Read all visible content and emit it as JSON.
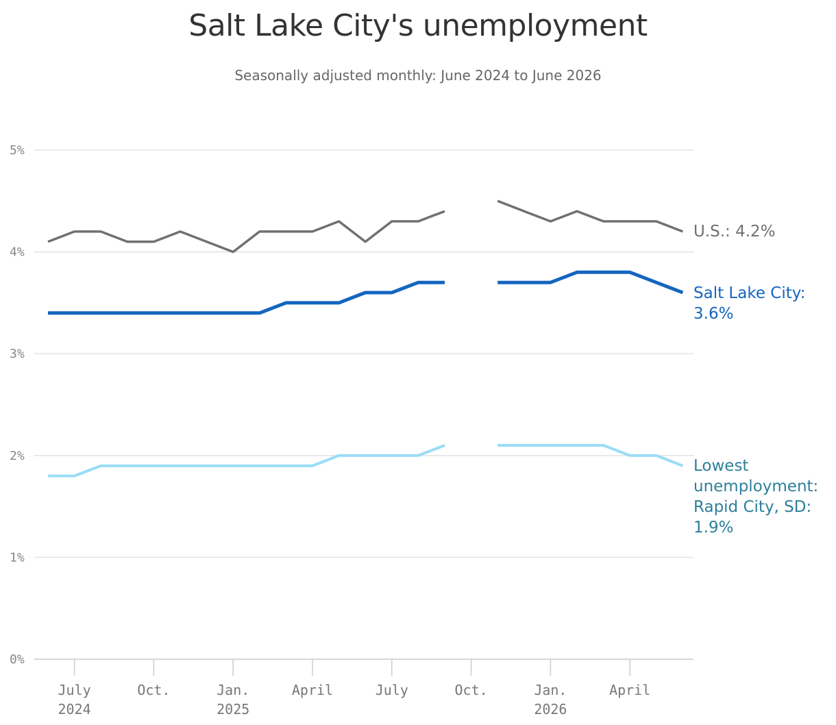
{
  "chart_data": {
    "type": "line",
    "title": "Salt Lake City's unemployment",
    "subtitle": "Seasonally adjusted monthly: June 2024 to June 2026",
    "xlabel": "",
    "ylabel": "",
    "x_months": [
      "2024-06",
      "2024-07",
      "2024-08",
      "2024-09",
      "2024-10",
      "2024-11",
      "2024-12",
      "2025-01",
      "2025-02",
      "2025-03",
      "2025-04",
      "2025-05",
      "2025-06",
      "2025-07",
      "2025-08",
      "2025-09",
      "2025-10",
      "2025-11",
      "2025-12",
      "2026-01",
      "2026-02",
      "2026-03",
      "2026-04",
      "2026-05",
      "2026-06"
    ],
    "ylim": [
      0,
      5
    ],
    "yticks": [
      0,
      1,
      2,
      3,
      4,
      5
    ],
    "ytick_labels": [
      "0%",
      "1%",
      "2%",
      "3%",
      "4%",
      "5%"
    ],
    "xticks": [
      {
        "month": "2024-07",
        "line1": "July",
        "line2": "2024"
      },
      {
        "month": "2024-10",
        "line1": "Oct.",
        "line2": ""
      },
      {
        "month": "2025-01",
        "line1": "Jan.",
        "line2": "2025"
      },
      {
        "month": "2025-04",
        "line1": "April",
        "line2": ""
      },
      {
        "month": "2025-07",
        "line1": "July",
        "line2": ""
      },
      {
        "month": "2025-10",
        "line1": "Oct.",
        "line2": ""
      },
      {
        "month": "2026-01",
        "line1": "Jan.",
        "line2": "2026"
      },
      {
        "month": "2026-04",
        "line1": "April",
        "line2": ""
      }
    ],
    "grid": true,
    "series": [
      {
        "label_lines": [
          "U.S.: 4.2%"
        ],
        "color": "#707070",
        "values": [
          4.1,
          4.2,
          4.2,
          4.1,
          4.1,
          4.2,
          4.1,
          4.0,
          4.2,
          4.2,
          4.2,
          4.3,
          4.1,
          4.3,
          4.3,
          4.4,
          null,
          4.5,
          4.4,
          4.3,
          4.4,
          4.3,
          4.3,
          4.3,
          4.2
        ]
      },
      {
        "label_lines": [
          "Salt Lake City:",
          "3.6%"
        ],
        "color": "#1565c0",
        "values": [
          3.4,
          3.4,
          3.4,
          3.4,
          3.4,
          3.4,
          3.4,
          3.4,
          3.4,
          3.5,
          3.5,
          3.5,
          3.6,
          3.6,
          3.7,
          3.7,
          null,
          3.7,
          3.7,
          3.7,
          3.8,
          3.8,
          3.8,
          3.7,
          3.6
        ]
      },
      {
        "label_lines": [
          "Lowest",
          "unemployment:",
          "Rapid City, SD:",
          "1.9%"
        ],
        "color": "#9adcf7",
        "label_color": "#2e7f9a",
        "values": [
          1.8,
          1.8,
          1.9,
          1.9,
          1.9,
          1.9,
          1.9,
          1.9,
          1.9,
          1.9,
          1.9,
          2.0,
          2.0,
          2.0,
          2.0,
          2.1,
          null,
          2.1,
          2.1,
          2.1,
          2.1,
          2.1,
          2.0,
          2.0,
          1.9
        ]
      }
    ]
  }
}
